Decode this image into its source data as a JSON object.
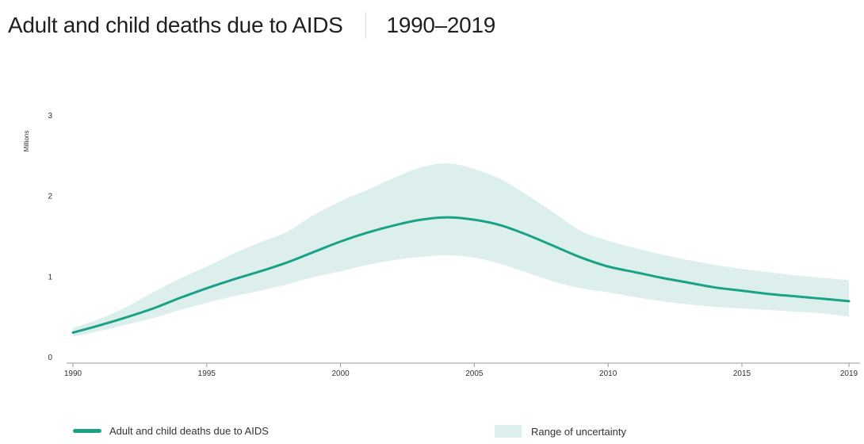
{
  "header": {
    "title": "Adult and child deaths due to AIDS",
    "subtitle": "1990–2019"
  },
  "colors": {
    "line": "#1aa287",
    "band": "#dcefec",
    "axis": "#9a9a9a"
  },
  "chart_data": {
    "type": "line",
    "title": "Adult and child deaths due to AIDS",
    "subtitle": "1990–2019",
    "xlabel": "",
    "ylabel": "Millions",
    "x": [
      1990,
      1991,
      1992,
      1993,
      1994,
      1995,
      1996,
      1997,
      1998,
      1999,
      2000,
      2001,
      2002,
      2003,
      2004,
      2005,
      2006,
      2007,
      2008,
      2009,
      2010,
      2011,
      2012,
      2013,
      2014,
      2015,
      2016,
      2017,
      2018,
      2019
    ],
    "xticks": [
      "1990",
      "1995",
      "2000",
      "2005",
      "2010",
      "2015",
      "2019"
    ],
    "xtick_values": [
      1990,
      1995,
      2000,
      2005,
      2010,
      2015,
      2019
    ],
    "yticks": [
      "0",
      "1",
      "2",
      "3"
    ],
    "ytick_values": [
      0,
      1,
      2,
      3
    ],
    "xlim": [
      1990,
      2019
    ],
    "ylim": [
      0,
      3
    ],
    "grid": false,
    "series": [
      {
        "name": "Adult and child deaths due to AIDS",
        "values": [
          0.3,
          0.39,
          0.49,
          0.6,
          0.73,
          0.85,
          0.96,
          1.06,
          1.17,
          1.3,
          1.43,
          1.54,
          1.63,
          1.7,
          1.73,
          1.7,
          1.63,
          1.51,
          1.37,
          1.23,
          1.12,
          1.05,
          0.98,
          0.92,
          0.86,
          0.82,
          0.78,
          0.75,
          0.72,
          0.69
        ]
      }
    ],
    "band": {
      "name": "Range of uncertainty",
      "lower": [
        0.25,
        0.32,
        0.4,
        0.48,
        0.58,
        0.67,
        0.75,
        0.82,
        0.9,
        0.99,
        1.06,
        1.14,
        1.2,
        1.24,
        1.26,
        1.23,
        1.15,
        1.04,
        0.93,
        0.85,
        0.8,
        0.74,
        0.69,
        0.65,
        0.62,
        0.6,
        0.58,
        0.56,
        0.54,
        0.5
      ],
      "upper": [
        0.36,
        0.47,
        0.62,
        0.8,
        0.97,
        1.12,
        1.28,
        1.42,
        1.55,
        1.76,
        1.93,
        2.07,
        2.22,
        2.35,
        2.4,
        2.33,
        2.2,
        2.0,
        1.78,
        1.56,
        1.44,
        1.35,
        1.27,
        1.2,
        1.14,
        1.09,
        1.05,
        1.01,
        0.98,
        0.95
      ]
    },
    "legend": [
      {
        "label": "Adult and child deaths due to AIDS",
        "kind": "line"
      },
      {
        "label": "Range of uncertainty",
        "kind": "band"
      }
    ],
    "legend_position": "bottom"
  }
}
